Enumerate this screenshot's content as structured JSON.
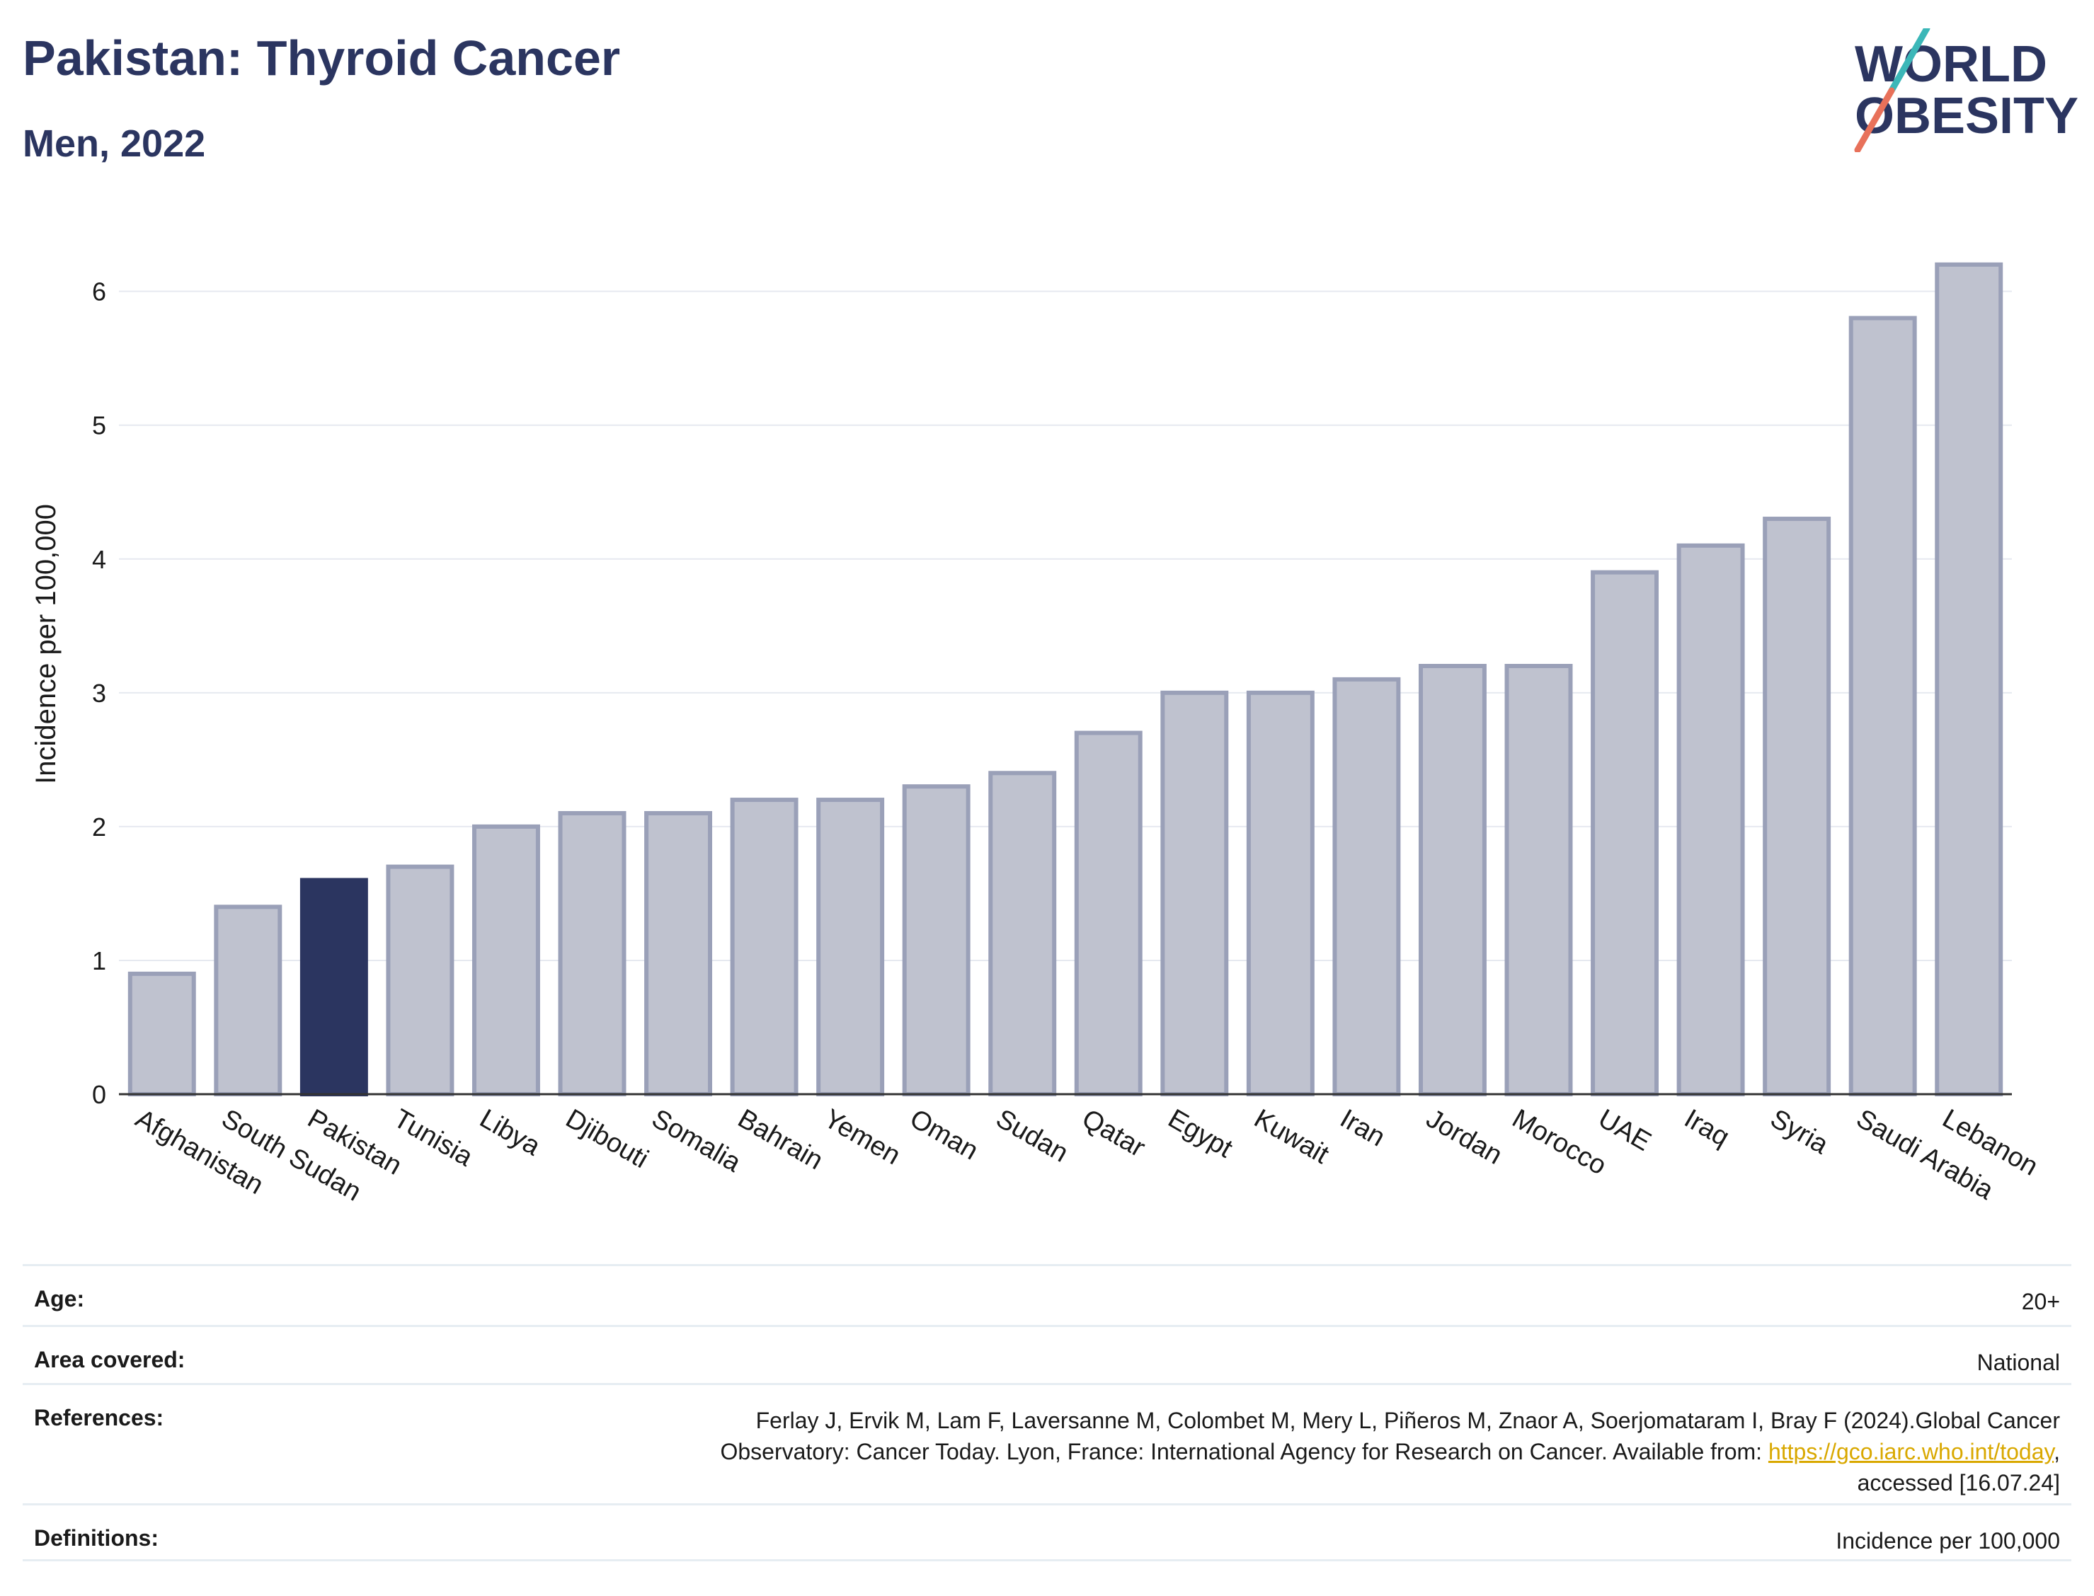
{
  "header": {
    "title": "Pakistan: Thyroid Cancer",
    "subtitle": "Men, 2022"
  },
  "logo": {
    "line1": "WORLD",
    "line2": "OBESITY",
    "colors": {
      "text": "#2b3560",
      "slash_top": "#3bb7b8",
      "slash_bottom": "#e8715a"
    }
  },
  "chart_data": {
    "type": "bar",
    "title": "Pakistan: Thyroid Cancer",
    "subtitle": "Men, 2022",
    "ylabel": "Incidence per 100,000",
    "xlabel": "",
    "ylim": [
      0,
      6.4
    ],
    "yticks": [
      0,
      1,
      2,
      3,
      4,
      5,
      6
    ],
    "grid": true,
    "highlight": "Pakistan",
    "colors": {
      "bar": "#bfc2cf",
      "bar_border": "#9aa0b8",
      "highlight": "#2b3560",
      "grid": "#e6e9f0",
      "axis": "#333333"
    },
    "categories": [
      "Afghanistan",
      "South Sudan",
      "Pakistan",
      "Tunisia",
      "Libya",
      "Djibouti",
      "Somalia",
      "Bahrain",
      "Yemen",
      "Oman",
      "Sudan",
      "Qatar",
      "Egypt",
      "Kuwait",
      "Iran",
      "Jordan",
      "Morocco",
      "UAE",
      "Iraq",
      "Syria",
      "Saudi Arabia",
      "Lebanon"
    ],
    "values": [
      0.9,
      1.4,
      1.6,
      1.7,
      2.0,
      2.1,
      2.1,
      2.2,
      2.2,
      2.3,
      2.4,
      2.7,
      3.0,
      3.0,
      3.1,
      3.2,
      3.2,
      3.9,
      4.1,
      4.3,
      5.8,
      6.2
    ]
  },
  "meta": {
    "age_label": "Age:",
    "age_value": "20+",
    "area_label": "Area covered:",
    "area_value": "National",
    "references_label": "References:",
    "references_text_1": "Ferlay J, Ervik M, Lam F, Laversanne M, Colombet M, Mery L, Piñeros M, Znaor A, Soerjomataram I, Bray F (2024).Global Cancer",
    "references_text_2": "Observatory: Cancer Today. Lyon, France: International Agency for Research on Cancer. Available from: ",
    "references_link": "https://gco.iarc.who.int/today",
    "references_text_3": ",",
    "references_text_4": "accessed [16.07.24]",
    "definitions_label": "Definitions:",
    "definitions_value": "Incidence per 100,000"
  }
}
